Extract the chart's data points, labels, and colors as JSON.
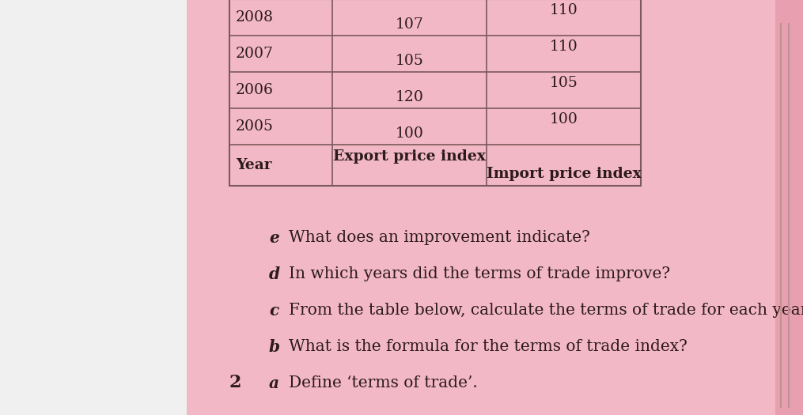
{
  "background_color": "#e8e8e8",
  "card_color": "#f2b8c6",
  "card_color2": "#eeaabb",
  "question_number": "2",
  "questions": [
    {
      "label": "a",
      "text": "Define ‘terms of trade’."
    },
    {
      "label": "b",
      "text": "What is the formula for the terms of trade index?"
    },
    {
      "label": "c",
      "text": "From the table below, calculate the terms of trade for each year."
    },
    {
      "label": "d",
      "text": "In which years did the terms of trade improve?"
    },
    {
      "label": "e",
      "text": "What does an improvement indicate?"
    }
  ],
  "table_headers": [
    "Year",
    "Export price index",
    "Import price index"
  ],
  "table_data": [
    [
      "2005",
      "100",
      "100"
    ],
    [
      "2006",
      "120",
      "105"
    ],
    [
      "2007",
      "105",
      "110"
    ],
    [
      "2008",
      "107",
      "110"
    ]
  ],
  "text_color": "#2d1a1a",
  "table_line_color": "#7a5a5a",
  "font_size_questions": 14.5,
  "font_size_table": 13.5,
  "font_size_number": 16.0,
  "font_size_label": 14.5
}
